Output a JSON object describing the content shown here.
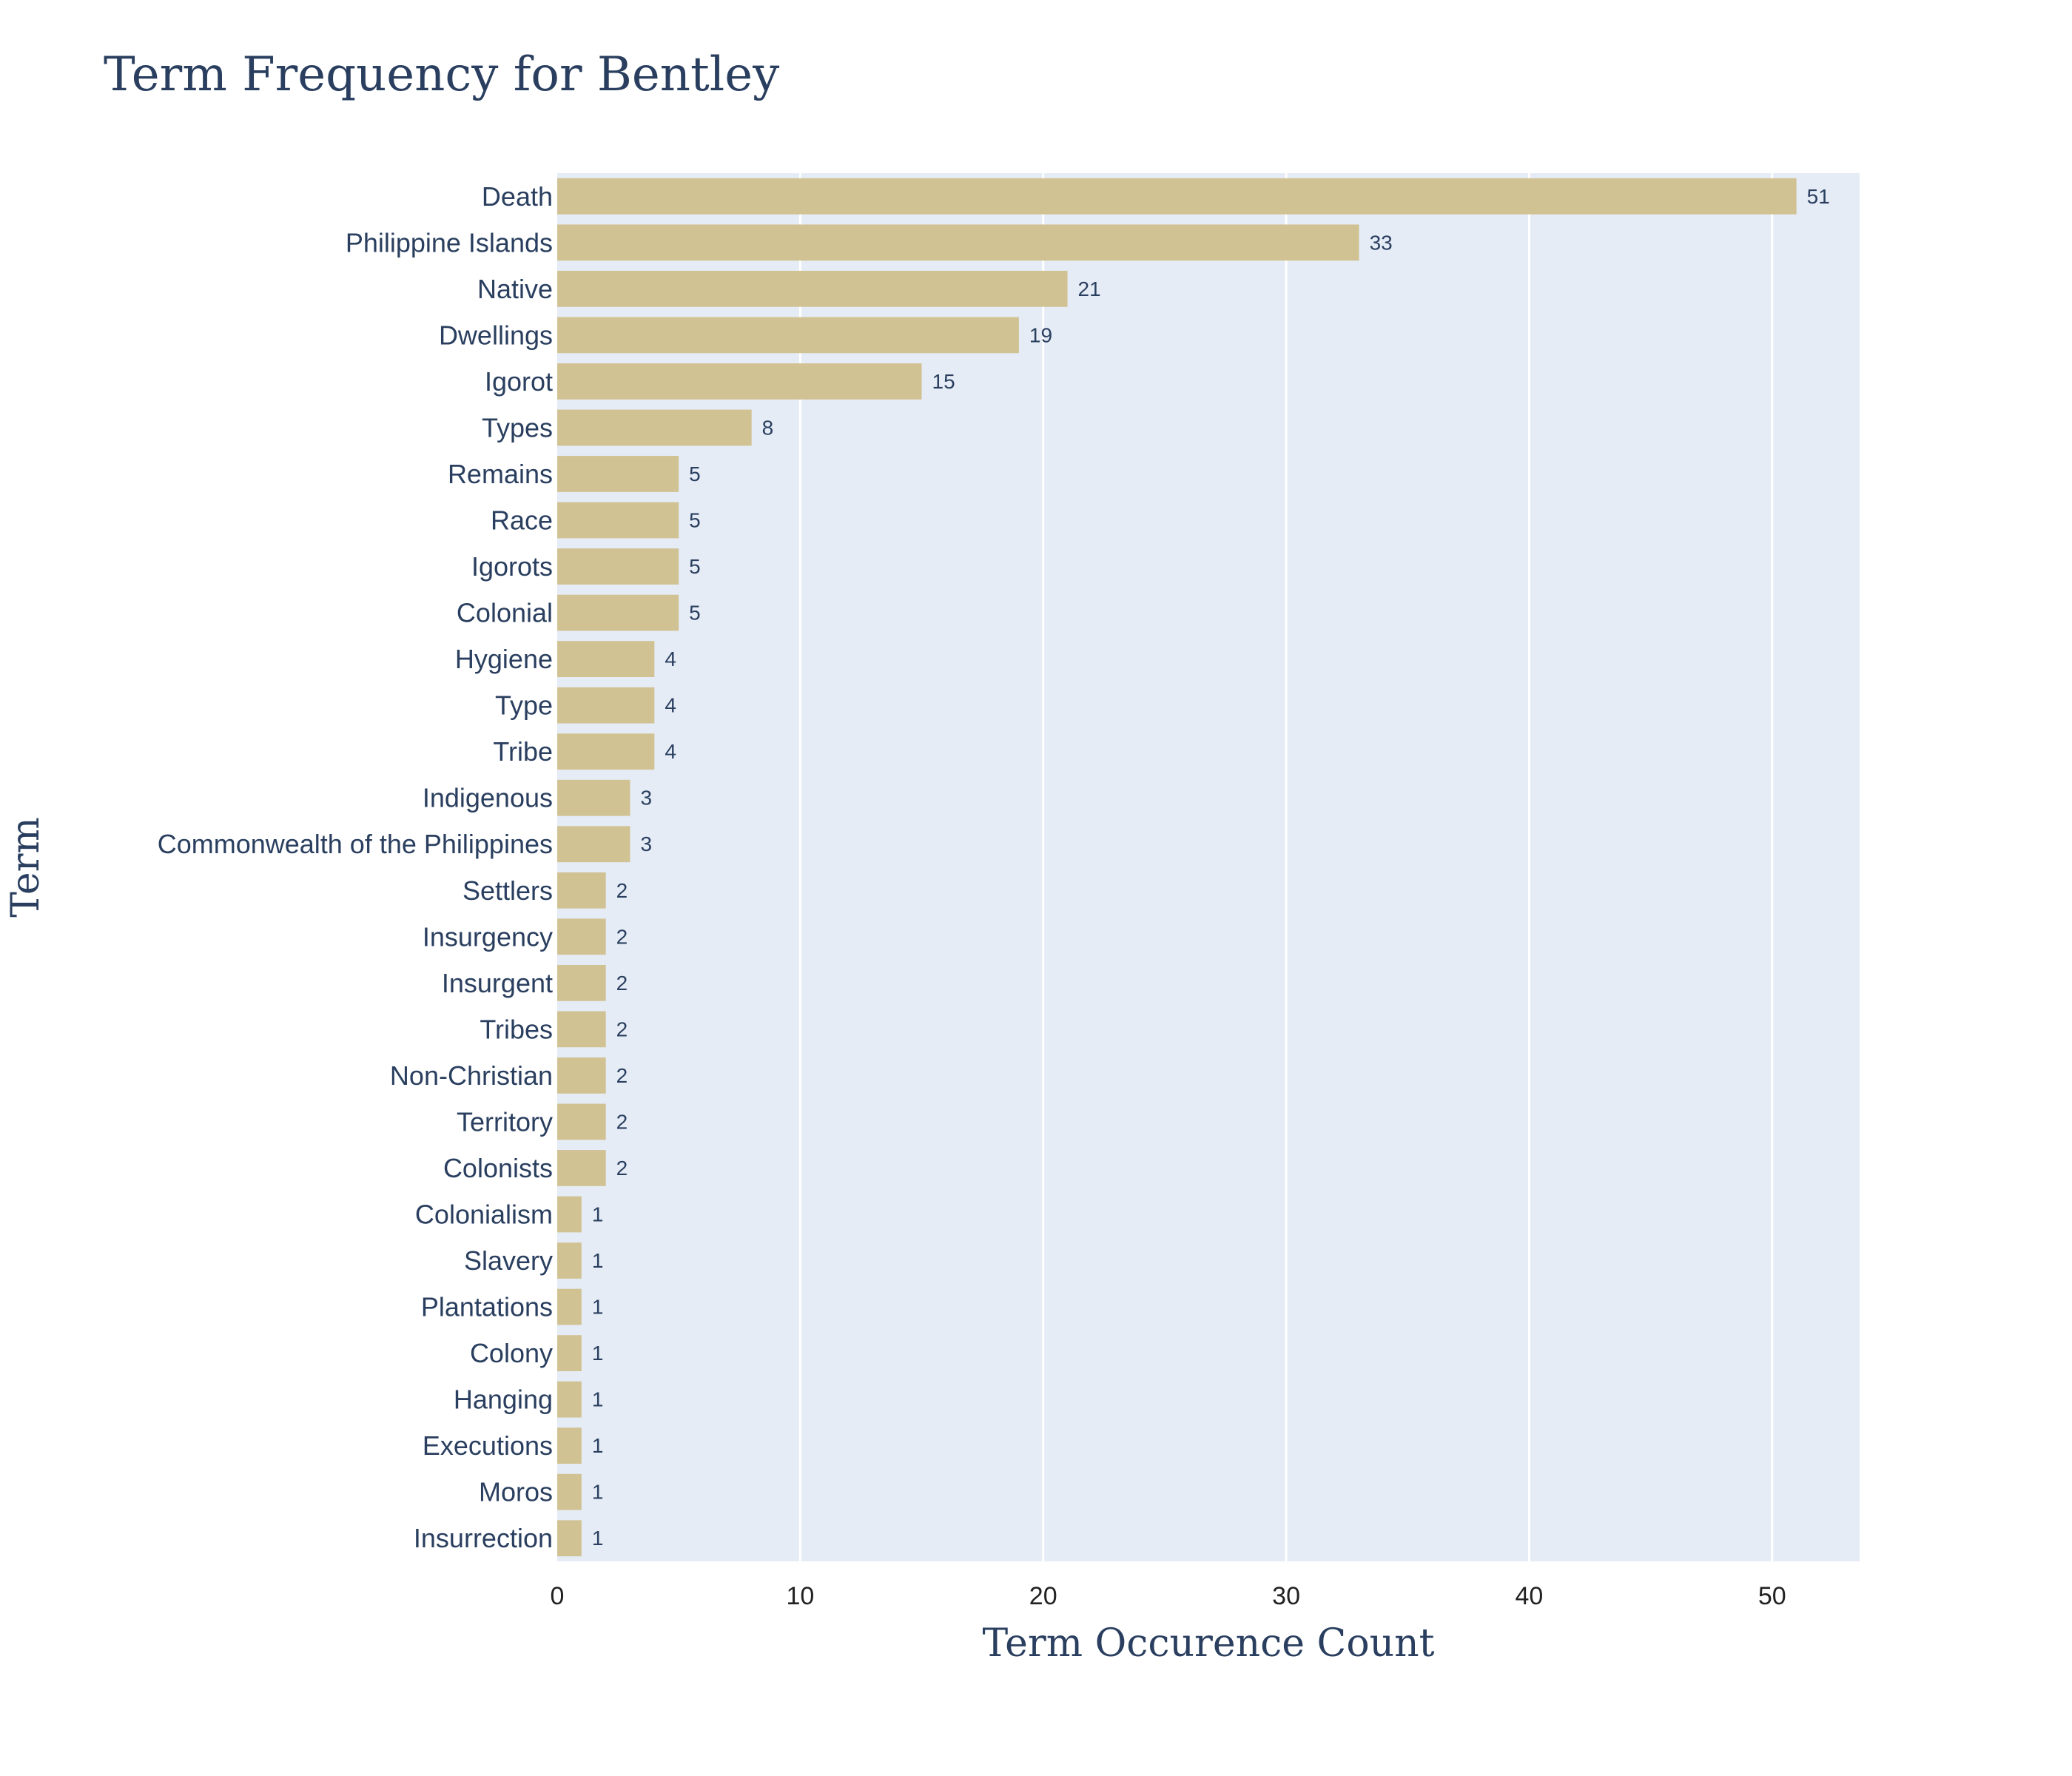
{
  "chart_data": {
    "type": "bar",
    "orientation": "horizontal",
    "title": "Term Frequency for Bentley",
    "xlabel": "Term Occurence Count",
    "ylabel": "Term",
    "xlim": [
      0,
      53.6
    ],
    "xticks": [
      0,
      10,
      20,
      30,
      40,
      50
    ],
    "grid": true,
    "bar_color": "#d1c293",
    "plot_bg": "#e5ecf6",
    "categories": [
      "Death",
      "Philippine Islands",
      "Native",
      "Dwellings",
      "Igorot",
      "Types",
      "Remains",
      "Race",
      "Igorots",
      "Colonial",
      "Hygiene",
      "Type",
      "Tribe",
      "Indigenous",
      "Commonwealth of the Philippines",
      "Settlers",
      "Insurgency",
      "Insurgent",
      "Tribes",
      "Non-Christian",
      "Territory",
      "Colonists",
      "Colonialism",
      "Slavery",
      "Plantations",
      "Colony",
      "Hanging",
      "Executions",
      "Moros",
      "Insurrection"
    ],
    "values": [
      51,
      33,
      21,
      19,
      15,
      8,
      5,
      5,
      5,
      5,
      4,
      4,
      4,
      3,
      3,
      2,
      2,
      2,
      2,
      2,
      2,
      2,
      1,
      1,
      1,
      1,
      1,
      1,
      1,
      1
    ]
  }
}
